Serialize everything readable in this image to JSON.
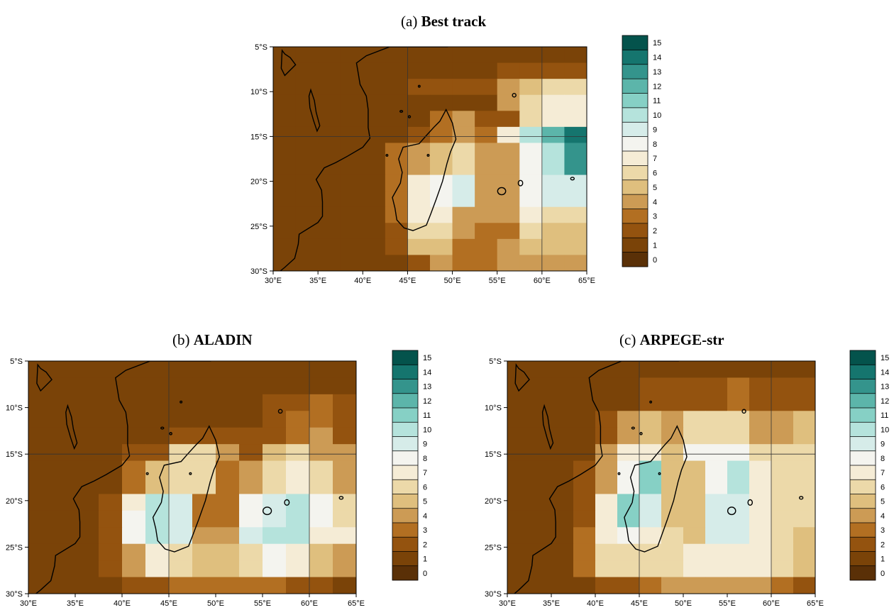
{
  "colors": {
    "ocean": "#7a4308",
    "land_outline": "#000000",
    "scale": [
      "#5a3007",
      "#7a4308",
      "#94530f",
      "#b26f22",
      "#cc9b55",
      "#dfbf7e",
      "#ecd9a9",
      "#f5ecd6",
      "#f4f4ef",
      "#d6ece9",
      "#b5e3dc",
      "#86d0c5",
      "#5cb5aa",
      "#34948c",
      "#15756e",
      "#04534c"
    ]
  },
  "colorbar": {
    "levels": [
      "0",
      "1",
      "2",
      "3",
      "4",
      "5",
      "6",
      "7",
      "8",
      "9",
      "10",
      "11",
      "12",
      "13",
      "14",
      "15"
    ]
  },
  "axes": {
    "lon_ticks": [
      "30°E",
      "35°E",
      "40°E",
      "45°E",
      "50°E",
      "55°E",
      "60°E",
      "65°E"
    ],
    "lat_ticks": [
      "5°S",
      "10°S",
      "15°S",
      "20°S",
      "25°S",
      "30°S"
    ],
    "lon_range": [
      30,
      65
    ],
    "lat_range": [
      -30,
      -5
    ]
  },
  "panels": [
    {
      "letter": "(a)",
      "name": "Best track",
      "grid": [
        [
          1,
          1,
          1,
          1,
          1,
          1,
          1,
          1,
          1,
          1,
          1,
          1,
          1,
          1
        ],
        [
          1,
          1,
          1,
          1,
          1,
          1,
          1,
          1,
          1,
          1,
          2,
          2,
          2,
          2
        ],
        [
          1,
          1,
          1,
          1,
          1,
          1,
          2,
          2,
          2,
          2,
          4,
          5,
          6,
          6
        ],
        [
          1,
          1,
          1,
          1,
          1,
          1,
          1,
          1,
          1,
          1,
          4,
          6,
          7,
          7
        ],
        [
          1,
          1,
          1,
          1,
          1,
          1,
          1,
          3,
          4,
          2,
          2,
          6,
          7,
          7
        ],
        [
          1,
          1,
          1,
          1,
          1,
          1,
          2,
          3,
          4,
          3,
          7,
          10,
          12,
          14
        ],
        [
          1,
          1,
          1,
          1,
          1,
          3,
          4,
          5,
          6,
          4,
          4,
          8,
          10,
          13
        ],
        [
          1,
          1,
          1,
          1,
          1,
          3,
          4,
          5,
          6,
          4,
          4,
          8,
          10,
          13
        ],
        [
          1,
          1,
          1,
          1,
          1,
          3,
          7,
          8,
          9,
          4,
          4,
          8,
          9,
          9
        ],
        [
          1,
          1,
          1,
          1,
          1,
          3,
          7,
          8,
          9,
          4,
          4,
          8,
          9,
          9
        ],
        [
          1,
          1,
          1,
          1,
          1,
          3,
          7,
          7,
          4,
          4,
          4,
          7,
          6,
          6
        ],
        [
          1,
          1,
          1,
          1,
          1,
          2,
          6,
          6,
          4,
          3,
          3,
          6,
          5,
          5
        ],
        [
          1,
          1,
          1,
          1,
          1,
          2,
          5,
          5,
          3,
          3,
          4,
          5,
          5,
          5
        ],
        [
          1,
          1,
          1,
          1,
          1,
          1,
          2,
          4,
          3,
          3,
          4,
          4,
          4,
          4
        ]
      ]
    },
    {
      "letter": "(b)",
      "name": "ALADIN",
      "grid": [
        [
          1,
          1,
          1,
          1,
          1,
          1,
          1,
          1,
          1,
          1,
          1,
          1,
          1,
          1
        ],
        [
          1,
          1,
          1,
          1,
          1,
          1,
          1,
          1,
          1,
          1,
          1,
          1,
          1,
          1
        ],
        [
          1,
          1,
          1,
          1,
          1,
          1,
          1,
          1,
          1,
          1,
          2,
          2,
          3,
          2
        ],
        [
          1,
          1,
          1,
          1,
          1,
          1,
          1,
          1,
          1,
          1,
          2,
          3,
          3,
          2
        ],
        [
          1,
          1,
          1,
          1,
          1,
          1,
          2,
          2,
          2,
          2,
          2,
          3,
          4,
          2
        ],
        [
          1,
          1,
          1,
          1,
          2,
          2,
          6,
          6,
          4,
          2,
          5,
          6,
          4,
          4
        ],
        [
          1,
          1,
          1,
          1,
          3,
          5,
          6,
          6,
          3,
          4,
          6,
          7,
          6,
          4
        ],
        [
          1,
          1,
          1,
          1,
          3,
          5,
          6,
          6,
          3,
          4,
          6,
          7,
          6,
          4
        ],
        [
          1,
          1,
          1,
          2,
          7,
          10,
          9,
          3,
          3,
          8,
          9,
          10,
          8,
          6
        ],
        [
          1,
          1,
          1,
          2,
          8,
          10,
          9,
          3,
          3,
          8,
          9,
          10,
          8,
          6
        ],
        [
          1,
          1,
          1,
          2,
          8,
          10,
          9,
          4,
          4,
          9,
          10,
          10,
          7,
          7
        ],
        [
          1,
          1,
          1,
          2,
          4,
          7,
          6,
          5,
          5,
          6,
          8,
          7,
          5,
          4
        ],
        [
          1,
          1,
          1,
          2,
          4,
          7,
          6,
          5,
          5,
          6,
          8,
          7,
          5,
          4
        ],
        [
          1,
          1,
          1,
          1,
          2,
          2,
          3,
          3,
          3,
          3,
          3,
          2,
          2,
          1
        ]
      ]
    },
    {
      "letter": "(c)",
      "name": "ARPEGE-str",
      "grid": [
        [
          1,
          1,
          1,
          1,
          1,
          1,
          1,
          1,
          1,
          1,
          1,
          1,
          1,
          1
        ],
        [
          1,
          1,
          1,
          1,
          1,
          1,
          2,
          2,
          2,
          2,
          3,
          2,
          2,
          2
        ],
        [
          1,
          1,
          1,
          1,
          1,
          1,
          2,
          2,
          2,
          2,
          3,
          2,
          2,
          2
        ],
        [
          1,
          1,
          1,
          1,
          2,
          4,
          5,
          4,
          6,
          6,
          6,
          4,
          4,
          5
        ],
        [
          1,
          1,
          1,
          1,
          2,
          4,
          5,
          4,
          6,
          6,
          6,
          4,
          4,
          5
        ],
        [
          1,
          1,
          1,
          1,
          4,
          7,
          7,
          5,
          8,
          8,
          8,
          6,
          6,
          6
        ],
        [
          1,
          1,
          1,
          2,
          4,
          8,
          11,
          5,
          5,
          8,
          10,
          7,
          6,
          6
        ],
        [
          1,
          1,
          1,
          2,
          4,
          8,
          11,
          5,
          5,
          8,
          10,
          7,
          6,
          6
        ],
        [
          1,
          1,
          1,
          2,
          7,
          11,
          9,
          5,
          5,
          9,
          9,
          7,
          6,
          6
        ],
        [
          1,
          1,
          1,
          2,
          7,
          11,
          9,
          5,
          5,
          9,
          9,
          7,
          6,
          6
        ],
        [
          1,
          1,
          1,
          3,
          7,
          8,
          7,
          6,
          5,
          9,
          9,
          7,
          6,
          5
        ],
        [
          1,
          1,
          1,
          3,
          6,
          6,
          6,
          6,
          7,
          7,
          7,
          7,
          6,
          5
        ],
        [
          1,
          1,
          1,
          3,
          6,
          6,
          6,
          6,
          7,
          7,
          7,
          7,
          6,
          5
        ],
        [
          1,
          1,
          1,
          1,
          2,
          2,
          3,
          4,
          4,
          4,
          4,
          4,
          3,
          2
        ]
      ]
    }
  ]
}
